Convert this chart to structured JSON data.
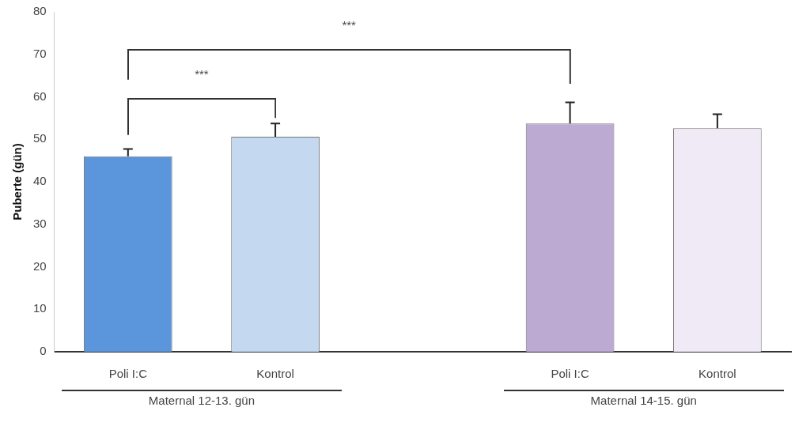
{
  "chart_data": {
    "type": "bar",
    "ylabel": "Puberte (gün)",
    "categories": [
      "Poli I:C",
      "Kontrol",
      null,
      "Poli I:C",
      "Kontrol"
    ],
    "values": [
      46,
      50.6,
      null,
      53.7,
      52.6
    ],
    "colors": [
      "#5b96dc",
      "#c4d8ef",
      "#cccccc",
      "#bcaad2",
      "#efeaf6"
    ],
    "errors": [
      [
        46,
        47.7
      ],
      [
        50.6,
        53.7
      ],
      null,
      [
        53.7,
        58.7
      ],
      [
        52.6,
        55.9
      ]
    ],
    "ylim": [
      0,
      80
    ],
    "yticks": [
      0,
      10,
      20,
      30,
      40,
      50,
      60,
      70,
      80
    ],
    "grid": false,
    "legend": false,
    "annotations": [
      "***",
      "***",
      "Maternal  12-13. gün",
      "Maternal  14-15. gün"
    ]
  }
}
